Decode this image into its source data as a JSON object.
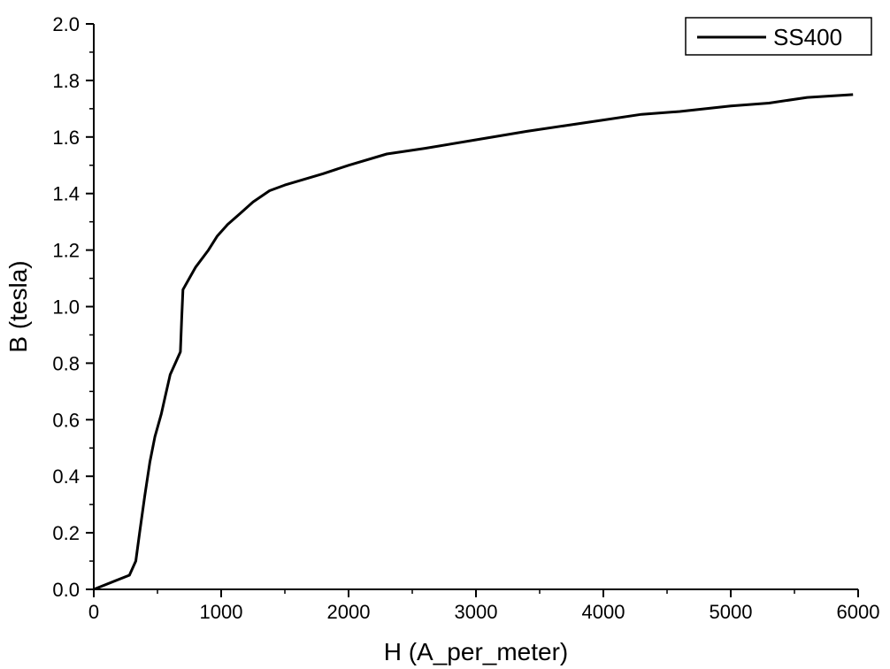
{
  "chart_data": {
    "type": "line",
    "xlabel": "H (A_per_meter)",
    "ylabel": "B (tesla)",
    "xlim": [
      0,
      6000
    ],
    "ylim": [
      0,
      2.0
    ],
    "xticks": [
      "0",
      "1000",
      "2000",
      "3000",
      "4000",
      "5000",
      "6000"
    ],
    "yticks": [
      "0.0",
      "0.2",
      "0.4",
      "0.6",
      "0.8",
      "1.0",
      "1.2",
      "1.4",
      "1.6",
      "1.8",
      "2.0"
    ],
    "grid": false,
    "legend_position": "top-right",
    "series": [
      {
        "name": "SS400",
        "color": "#000000",
        "x": [
          0,
          280,
          330,
          360,
          400,
          440,
          480,
          530,
          560,
          600,
          650,
          680,
          690,
          700,
          750,
          800,
          900,
          970,
          1050,
          1150,
          1250,
          1380,
          1500,
          1650,
          1800,
          2000,
          2300,
          2600,
          3000,
          3400,
          3700,
          4000,
          4300,
          4600,
          4800,
          5000,
          5300,
          5600,
          5960
        ],
        "y": [
          0,
          0.05,
          0.1,
          0.2,
          0.33,
          0.45,
          0.54,
          0.62,
          0.68,
          0.76,
          0.81,
          0.84,
          0.96,
          1.06,
          1.1,
          1.14,
          1.2,
          1.25,
          1.29,
          1.33,
          1.37,
          1.41,
          1.43,
          1.45,
          1.47,
          1.5,
          1.54,
          1.56,
          1.59,
          1.62,
          1.64,
          1.66,
          1.68,
          1.69,
          1.7,
          1.71,
          1.72,
          1.74,
          1.75
        ]
      }
    ]
  }
}
